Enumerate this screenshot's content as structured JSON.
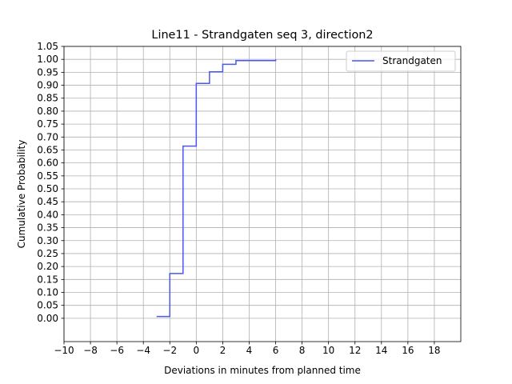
{
  "chart_data": {
    "type": "line",
    "title": "Line11 - Strandgaten seq 3, direction2",
    "xlabel": "Deviations in minutes from planned time",
    "ylabel": "Cumulative Probability",
    "xlim": [
      -10,
      20
    ],
    "ylim": [
      -0.09,
      1.05
    ],
    "xticks": [
      -10,
      -8,
      -6,
      -4,
      -2,
      0,
      2,
      4,
      6,
      8,
      10,
      12,
      14,
      16,
      18
    ],
    "xtick_labels": [
      "−10",
      "−8",
      "−6",
      "−4",
      "−2",
      "0",
      "2",
      "4",
      "6",
      "8",
      "10",
      "12",
      "14",
      "16",
      "18"
    ],
    "yticks": [
      0.0,
      0.05,
      0.1,
      0.15,
      0.2,
      0.25,
      0.3,
      0.35,
      0.4,
      0.45,
      0.5,
      0.55,
      0.6,
      0.65,
      0.7,
      0.75,
      0.8,
      0.85,
      0.9,
      0.95,
      1.0,
      1.05
    ],
    "ytick_labels": [
      "0.00",
      "0.05",
      "0.10",
      "0.15",
      "0.20",
      "0.25",
      "0.30",
      "0.35",
      "0.40",
      "0.45",
      "0.50",
      "0.55",
      "0.60",
      "0.65",
      "0.70",
      "0.75",
      "0.80",
      "0.85",
      "0.90",
      "0.95",
      "1.00",
      "1.05"
    ],
    "grid": true,
    "legend_position": "top-right",
    "series": [
      {
        "name": "Strandgaten",
        "color": "#4957f3",
        "step": "post",
        "x": [
          -3,
          -2,
          -1,
          0,
          1,
          2,
          3,
          6
        ],
        "y": [
          0.007,
          0.173,
          0.665,
          0.907,
          0.952,
          0.981,
          0.995,
          1.0
        ]
      }
    ]
  }
}
